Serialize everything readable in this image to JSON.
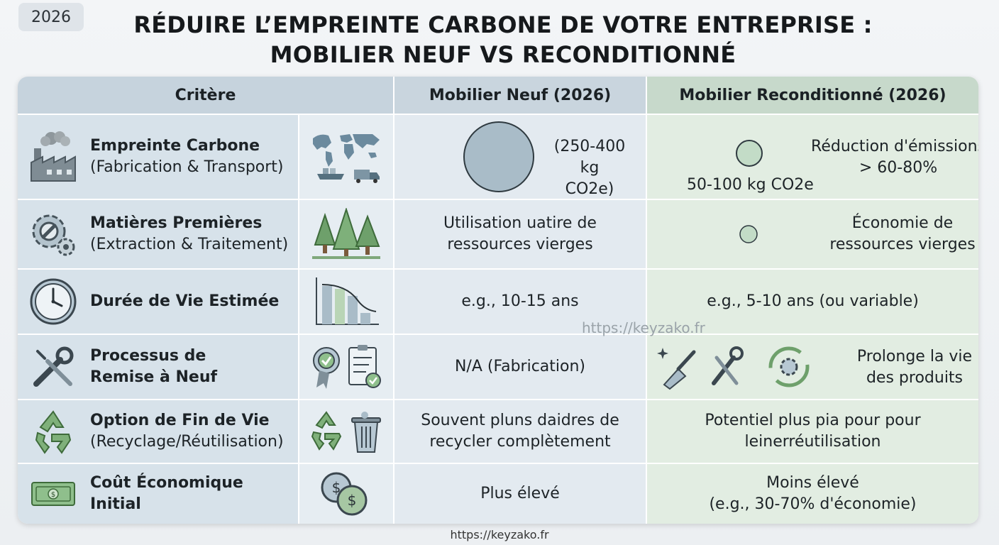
{
  "year_badge": "2026",
  "title_line1": "RÉDUIRE L’EMPREINTE CARBONE DE VOTRE ENTREPRISE :",
  "title_line2": "MOBILIER NEUF VS RECONDITIONNÉ",
  "headers": {
    "criteria": "Critère",
    "new": "Mobilier Neuf (2026)",
    "refurb": "Mobilier Reconditionné (2026)"
  },
  "rows": [
    {
      "title": "Empreinte Carbone",
      "subtitle": "(Fabrication & Transport)",
      "icon": "factory-icon",
      "icon2": "world-map-transport-icon",
      "new_line1": "(250-400 kg",
      "new_line2": "CO2e)",
      "refurb_value": "50-100 kg CO2e",
      "refurb_line1": "Réduction d'émissions",
      "refurb_line2": "> 60-80%"
    },
    {
      "title": "Matières Premières",
      "subtitle": "(Extraction & Traitement)",
      "icon": "gears-wrench-icon",
      "icon2": "pine-trees-icon",
      "new_line1": "Utilisation uatire de",
      "new_line2": "ressources vierges",
      "refurb_line1": "Économie de",
      "refurb_line2": "ressources vierges"
    },
    {
      "title": "Durée de Vie Estimée",
      "subtitle": "",
      "icon": "clock-icon",
      "icon2": "declining-bar-chart-icon",
      "new_line1": "e.g., 10-15 ans",
      "refurb_line1": "e.g., 5-10 ans (ou variable)"
    },
    {
      "title": "Processus de",
      "title2": "Remise à Neuf",
      "icon": "wrench-screwdriver-icon",
      "icon2": "badge-checklist-icon",
      "new_line1": "N/A (Fabrication)",
      "refurb_line1": "Prolonge la vie",
      "refurb_line2": "des produits"
    },
    {
      "title": "Option de Fin de Vie",
      "subtitle": "(Recyclage/Réutilisation)",
      "icon": "recycle-icon",
      "icon2": "recycle-bin-icon",
      "new_line1": "Souvent pluns daidres de",
      "new_line2": "recycler complètement",
      "refurb_line1": "Potentiel plus pia pour pour",
      "refurb_line2": "leinerréutilisation"
    },
    {
      "title": "Coût Économique Initial",
      "subtitle": "",
      "icon": "banknote-icon",
      "icon2": "coins-icon",
      "new_line1": "Plus élevé",
      "refurb_line1": "Moins élevé",
      "refurb_line2": "(e.g., 30-70% d'économie)"
    }
  ],
  "watermark": "https://keyzako.fr",
  "footer": "https://keyzako.fr",
  "colors": {
    "header_criteria": "#c6d3dd",
    "header_new": "#c9d5de",
    "header_refurb": "#c7d9cb",
    "bubble": "#a9bcc8",
    "refurb_bubble": "#c3dcc7"
  }
}
